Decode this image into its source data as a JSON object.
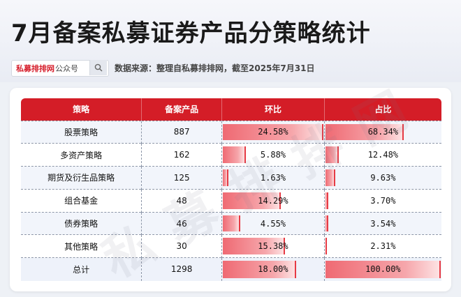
{
  "title": "7月备案私募证券产品分策略统计",
  "brand": {
    "red": "私募排排网",
    "gray": "公众号"
  },
  "source": "数据来源：整理自私募排排网，截至2025年7月31日",
  "watermark": "私募排排网",
  "colors": {
    "header_red": "#d41d27",
    "bar": "#ef6a73"
  },
  "icons": {
    "search": "search-icon"
  },
  "chart_data": {
    "type": "table",
    "columns": [
      "策略",
      "备案产品",
      "环比",
      "占比"
    ],
    "rows": [
      {
        "strategy": "股票策略",
        "count": "887",
        "qoq": "24.58%",
        "qoq_value": 24.58,
        "share": "68.34%",
        "share_value": 68.34
      },
      {
        "strategy": "多资产策略",
        "count": "162",
        "qoq": "5.88%",
        "qoq_value": 5.88,
        "share": "12.48%",
        "share_value": 12.48
      },
      {
        "strategy": "期货及衍生品策略",
        "count": "125",
        "qoq": "1.63%",
        "qoq_value": 1.63,
        "share": "9.63%",
        "share_value": 9.63
      },
      {
        "strategy": "组合基金",
        "count": "48",
        "qoq": "14.29%",
        "qoq_value": 14.29,
        "share": "3.70%",
        "share_value": 3.7
      },
      {
        "strategy": "债券策略",
        "count": "46",
        "qoq": "4.55%",
        "qoq_value": 4.55,
        "share": "3.54%",
        "share_value": 3.54
      },
      {
        "strategy": "其他策略",
        "count": "30",
        "qoq": "15.38%",
        "qoq_value": 15.38,
        "share": "2.31%",
        "share_value": 2.31
      },
      {
        "strategy": "总计",
        "count": "1298",
        "qoq": "18.00%",
        "qoq_value": 18.0,
        "share": "100.00%",
        "share_value": 100.0
      }
    ]
  }
}
